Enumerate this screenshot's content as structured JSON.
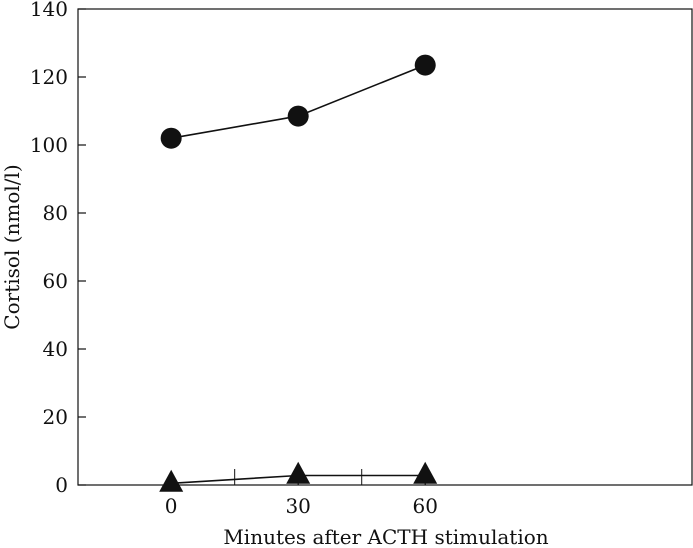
{
  "chart_data": {
    "type": "line",
    "title": "",
    "xlabel": "Minutes after ACTH stimulation",
    "ylabel": "Cortisol (nmol/l)",
    "xlim": [
      -22,
      123
    ],
    "ylim": [
      0,
      140
    ],
    "x_ticks": [
      0,
      30,
      60
    ],
    "x_tick_labels": [
      "0",
      "30",
      "60"
    ],
    "x_minor_ticks": [
      15,
      45
    ],
    "y_ticks": [
      0,
      20,
      40,
      60,
      80,
      100,
      120,
      140
    ],
    "y_tick_labels": [
      "0",
      "20",
      "40",
      "60",
      "80",
      "100",
      "120",
      "140"
    ],
    "grid": false,
    "legend": "none",
    "x": [
      0,
      30,
      60
    ],
    "series": [
      {
        "marker": "circle",
        "color": "#111111",
        "values": [
          102,
          108.5,
          123.5
        ]
      },
      {
        "marker": "triangle",
        "color": "#111111",
        "values": [
          0.5,
          2.8,
          2.8
        ]
      }
    ]
  }
}
